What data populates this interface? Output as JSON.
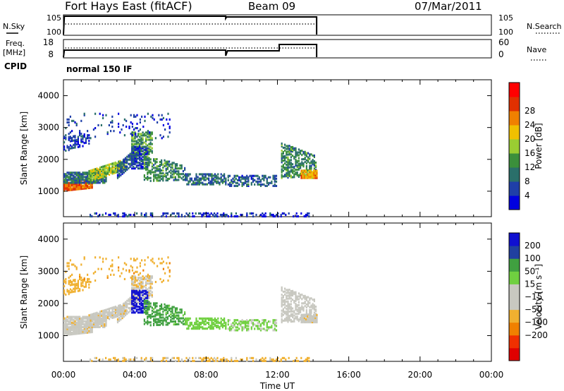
{
  "header": {
    "station": "Fort Hays East (fitACF)",
    "beam": "Beam 09",
    "date": "07/Mar/2011"
  },
  "labels": {
    "nsky": "N.Sky",
    "nsearch": "N.Search",
    "freq": "Freq.",
    "mhz": "[MHz]",
    "nave": "Nave",
    "cpid": "CPID",
    "cpid_value": "normal 150 IF",
    "noise_top": "10^5",
    "noise_bot": "10^0",
    "freq_top": "18",
    "freq_bot": "8",
    "nave_top": "60",
    "nave_bot": "0"
  },
  "colors": {
    "power_scale": [
      "#0000e0",
      "#1f3fa8",
      "#2a6f6a",
      "#3b8f3b",
      "#9acd32",
      "#f0c000",
      "#f08000",
      "#e03000",
      "#ff0000"
    ],
    "velocity_scale": [
      "#e00000",
      "#f03000",
      "#f08000",
      "#f0b030",
      "#c8c8c0",
      "#c8c8c0",
      "#70d040",
      "#40a040",
      "#2040a0",
      "#1010d0"
    ]
  },
  "chart_data": [
    {
      "type": "heatmap",
      "name": "power",
      "ylabel": "Slant Range [km]",
      "xlabel": "",
      "yticks": [
        1000,
        2000,
        3000,
        4000
      ],
      "ylim": [
        200,
        4500
      ],
      "xlim_hours": [
        0,
        24
      ],
      "colorbar_label": "Power [dB]",
      "colorbar_ticks": [
        "4",
        "8",
        "12",
        "16",
        "20",
        "24",
        "28"
      ]
    },
    {
      "type": "heatmap",
      "name": "velocity",
      "ylabel": "Slant Range [km]",
      "xlabel": "Time UT",
      "xticks": [
        "00:00",
        "04:00",
        "08:00",
        "12:00",
        "16:00",
        "20:00",
        "00:00"
      ],
      "yticks": [
        1000,
        2000,
        3000,
        4000
      ],
      "ylim": [
        200,
        4500
      ],
      "xlim_hours": [
        0,
        24
      ],
      "colorbar_label": "Velocity [m s⁻¹]",
      "colorbar_ticks": [
        "200",
        "100",
        "50",
        "15",
        "−15",
        "−50",
        "−100",
        "−200"
      ]
    }
  ]
}
